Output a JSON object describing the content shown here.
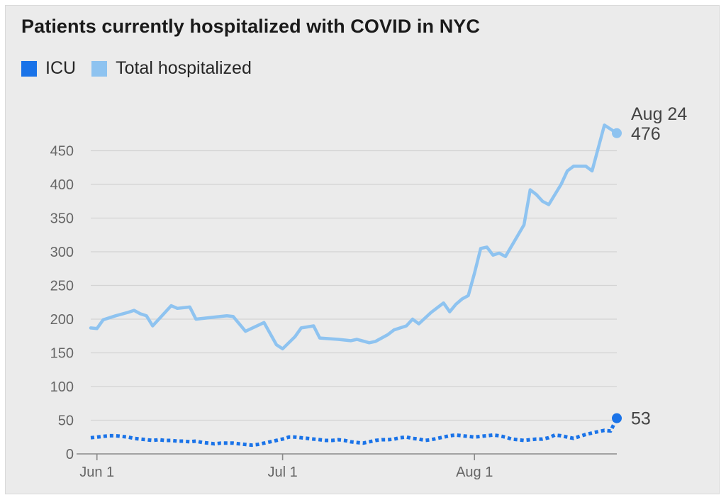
{
  "chart_data": {
    "type": "line",
    "title": "Patients currently hospitalized with COVID in NYC",
    "xlabel": "",
    "ylabel": "",
    "ylim": [
      0,
      500
    ],
    "x_range": [
      "2021-05-31",
      "2021-08-24"
    ],
    "yticks": [
      0,
      50,
      100,
      150,
      200,
      250,
      300,
      350,
      400,
      450
    ],
    "ytick_labels": [
      "0",
      "50",
      "100",
      "150",
      "200",
      "250",
      "300",
      "350",
      "400",
      "450"
    ],
    "xticks": [
      "2021-06-01",
      "2021-07-01",
      "2021-08-01"
    ],
    "xtick_labels": [
      "Jun 1",
      "Jul 1",
      "Aug 1"
    ],
    "grid": true,
    "legend_position": "top-left",
    "series": [
      {
        "name": "ICU",
        "color": "#1a73e8",
        "style": "dotted",
        "points": [
          [
            "2021-05-31",
            24
          ],
          [
            "2021-06-01",
            25
          ],
          [
            "2021-06-02",
            26
          ],
          [
            "2021-06-03",
            27
          ],
          [
            "2021-06-04",
            27
          ],
          [
            "2021-06-05",
            26
          ],
          [
            "2021-06-06",
            25
          ],
          [
            "2021-06-07",
            23
          ],
          [
            "2021-06-08",
            22
          ],
          [
            "2021-06-09",
            21
          ],
          [
            "2021-06-10",
            20
          ],
          [
            "2021-06-11",
            21
          ],
          [
            "2021-06-12",
            20
          ],
          [
            "2021-06-13",
            20
          ],
          [
            "2021-06-14",
            19
          ],
          [
            "2021-06-15",
            19
          ],
          [
            "2021-06-16",
            18
          ],
          [
            "2021-06-17",
            19
          ],
          [
            "2021-06-18",
            17
          ],
          [
            "2021-06-19",
            16
          ],
          [
            "2021-06-20",
            15
          ],
          [
            "2021-06-21",
            16
          ],
          [
            "2021-06-22",
            16
          ],
          [
            "2021-06-23",
            16
          ],
          [
            "2021-06-24",
            15
          ],
          [
            "2021-06-25",
            14
          ],
          [
            "2021-06-26",
            13
          ],
          [
            "2021-06-27",
            14
          ],
          [
            "2021-06-28",
            16
          ],
          [
            "2021-06-29",
            18
          ],
          [
            "2021-06-30",
            20
          ],
          [
            "2021-07-01",
            22
          ],
          [
            "2021-07-02",
            25
          ],
          [
            "2021-07-03",
            25
          ],
          [
            "2021-07-04",
            24
          ],
          [
            "2021-07-05",
            23
          ],
          [
            "2021-07-06",
            22
          ],
          [
            "2021-07-07",
            21
          ],
          [
            "2021-07-08",
            20
          ],
          [
            "2021-07-09",
            20
          ],
          [
            "2021-07-10",
            21
          ],
          [
            "2021-07-11",
            20
          ],
          [
            "2021-07-12",
            18
          ],
          [
            "2021-07-13",
            17
          ],
          [
            "2021-07-14",
            16
          ],
          [
            "2021-07-15",
            18
          ],
          [
            "2021-07-16",
            20
          ],
          [
            "2021-07-17",
            21
          ],
          [
            "2021-07-18",
            21
          ],
          [
            "2021-07-19",
            22
          ],
          [
            "2021-07-20",
            24
          ],
          [
            "2021-07-21",
            25
          ],
          [
            "2021-07-22",
            23
          ],
          [
            "2021-07-23",
            22
          ],
          [
            "2021-07-24",
            20
          ],
          [
            "2021-07-25",
            21
          ],
          [
            "2021-07-26",
            23
          ],
          [
            "2021-07-27",
            25
          ],
          [
            "2021-07-28",
            27
          ],
          [
            "2021-07-29",
            28
          ],
          [
            "2021-07-30",
            27
          ],
          [
            "2021-07-31",
            26
          ],
          [
            "2021-08-01",
            25
          ],
          [
            "2021-08-02",
            26
          ],
          [
            "2021-08-03",
            27
          ],
          [
            "2021-08-04",
            28
          ],
          [
            "2021-08-05",
            27
          ],
          [
            "2021-08-06",
            25
          ],
          [
            "2021-08-07",
            22
          ],
          [
            "2021-08-08",
            21
          ],
          [
            "2021-08-09",
            20
          ],
          [
            "2021-08-10",
            21
          ],
          [
            "2021-08-11",
            22
          ],
          [
            "2021-08-12",
            22
          ],
          [
            "2021-08-13",
            24
          ],
          [
            "2021-08-14",
            28
          ],
          [
            "2021-08-15",
            27
          ],
          [
            "2021-08-16",
            25
          ],
          [
            "2021-08-17",
            23
          ],
          [
            "2021-08-18",
            26
          ],
          [
            "2021-08-19",
            29
          ],
          [
            "2021-08-20",
            31
          ],
          [
            "2021-08-21",
            33
          ],
          [
            "2021-08-22",
            35
          ],
          [
            "2021-08-23",
            34
          ],
          [
            "2021-08-24",
            53
          ]
        ],
        "end_label": "53"
      },
      {
        "name": "Total hospitalized",
        "color": "#8ec3f0",
        "style": "solid",
        "points": [
          [
            "2021-05-31",
            187
          ],
          [
            "2021-06-01",
            186
          ],
          [
            "2021-06-02",
            199
          ],
          [
            "2021-06-04",
            205
          ],
          [
            "2021-06-06",
            210
          ],
          [
            "2021-06-07",
            213
          ],
          [
            "2021-06-08",
            208
          ],
          [
            "2021-06-09",
            205
          ],
          [
            "2021-06-10",
            190
          ],
          [
            "2021-06-12",
            210
          ],
          [
            "2021-06-13",
            220
          ],
          [
            "2021-06-14",
            216
          ],
          [
            "2021-06-16",
            218
          ],
          [
            "2021-06-17",
            200
          ],
          [
            "2021-06-20",
            203
          ],
          [
            "2021-06-22",
            205
          ],
          [
            "2021-06-23",
            204
          ],
          [
            "2021-06-25",
            182
          ],
          [
            "2021-06-28",
            195
          ],
          [
            "2021-06-30",
            162
          ],
          [
            "2021-07-01",
            156
          ],
          [
            "2021-07-03",
            174
          ],
          [
            "2021-07-04",
            187
          ],
          [
            "2021-07-06",
            190
          ],
          [
            "2021-07-07",
            172
          ],
          [
            "2021-07-10",
            170
          ],
          [
            "2021-07-12",
            168
          ],
          [
            "2021-07-13",
            170
          ],
          [
            "2021-07-15",
            165
          ],
          [
            "2021-07-16",
            167
          ],
          [
            "2021-07-18",
            177
          ],
          [
            "2021-07-19",
            184
          ],
          [
            "2021-07-21",
            190
          ],
          [
            "2021-07-22",
            200
          ],
          [
            "2021-07-23",
            193
          ],
          [
            "2021-07-25",
            210
          ],
          [
            "2021-07-27",
            224
          ],
          [
            "2021-07-28",
            211
          ],
          [
            "2021-07-29",
            222
          ],
          [
            "2021-07-30",
            230
          ],
          [
            "2021-07-31",
            235
          ],
          [
            "2021-08-01",
            268
          ],
          [
            "2021-08-02",
            305
          ],
          [
            "2021-08-03",
            307
          ],
          [
            "2021-08-04",
            295
          ],
          [
            "2021-08-05",
            298
          ],
          [
            "2021-08-06",
            293
          ],
          [
            "2021-08-09",
            340
          ],
          [
            "2021-08-10",
            392
          ],
          [
            "2021-08-11",
            385
          ],
          [
            "2021-08-12",
            375
          ],
          [
            "2021-08-13",
            370
          ],
          [
            "2021-08-15",
            400
          ],
          [
            "2021-08-16",
            420
          ],
          [
            "2021-08-17",
            427
          ],
          [
            "2021-08-18",
            427
          ],
          [
            "2021-08-19",
            427
          ],
          [
            "2021-08-20",
            420
          ],
          [
            "2021-08-22",
            488
          ],
          [
            "2021-08-23",
            482
          ],
          [
            "2021-08-24",
            476
          ]
        ],
        "end_label": "476",
        "end_date_label": "Aug 24"
      }
    ]
  }
}
